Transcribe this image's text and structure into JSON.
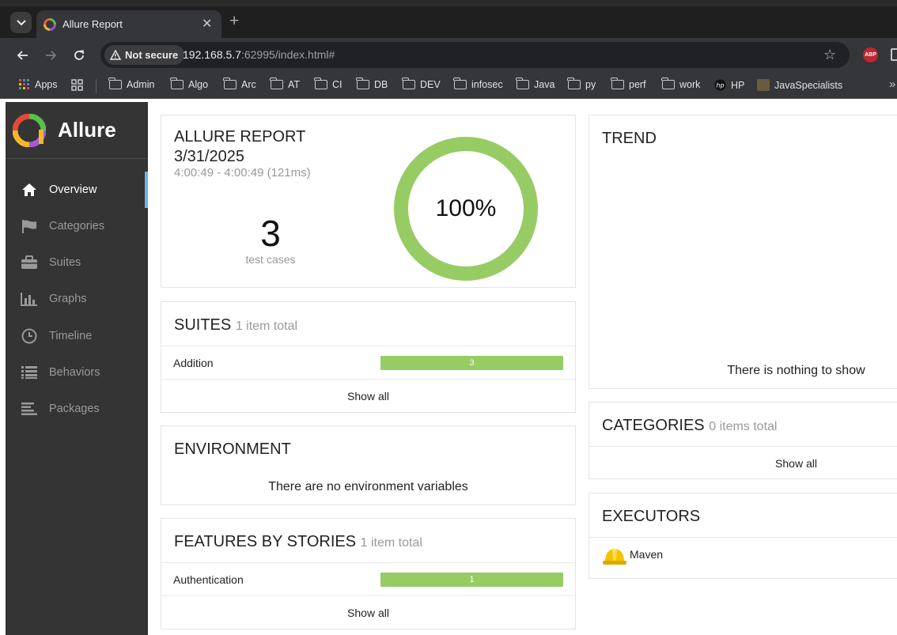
{
  "browser": {
    "tab_title": "Allure Report",
    "security_label": "Not secure",
    "url_host": "192.168.5.7",
    "url_rest": ":62995/index.html#",
    "bookmarks": [
      "Apps",
      "Admin",
      "Algo",
      "Arc",
      "AT",
      "CI",
      "DB",
      "DEV",
      "infosec",
      "Java",
      "py",
      "perf",
      "work",
      "HP",
      "JavaSpecialists"
    ],
    "abp_label": "ABP"
  },
  "sidebar": {
    "brand": "Allure",
    "items": [
      {
        "label": "Overview",
        "icon": "home-icon",
        "active": true
      },
      {
        "label": "Categories",
        "icon": "flag-icon"
      },
      {
        "label": "Suites",
        "icon": "briefcase-icon"
      },
      {
        "label": "Graphs",
        "icon": "bar-chart-icon"
      },
      {
        "label": "Timeline",
        "icon": "clock-icon"
      },
      {
        "label": "Behaviors",
        "icon": "list-icon"
      },
      {
        "label": "Packages",
        "icon": "align-left-icon"
      }
    ]
  },
  "summary": {
    "title": "ALLURE REPORT",
    "date": "3/31/2025",
    "time_range": "4:00:49 - 4:00:49 (121ms)",
    "test_count": "3",
    "test_count_label": "test cases",
    "pass_rate": "100%",
    "pass_fraction": 1.0
  },
  "suites": {
    "title": "SUITES",
    "count": "1 item total",
    "rows": [
      {
        "name": "Addition",
        "value": "3"
      }
    ],
    "show_all": "Show all"
  },
  "environment": {
    "title": "ENVIRONMENT",
    "empty": "There are no environment variables"
  },
  "features": {
    "title": "FEATURES BY STORIES",
    "count": "1 item total",
    "rows": [
      {
        "name": "Authentication",
        "value": "1"
      }
    ],
    "show_all": "Show all"
  },
  "trend": {
    "title": "TREND",
    "empty": "There is nothing to show"
  },
  "categories": {
    "title": "CATEGORIES",
    "count": "0 items total",
    "show_all": "Show all"
  },
  "executors": {
    "title": "EXECUTORS",
    "items": [
      {
        "name": "Maven",
        "icon": "hard-hat-icon"
      }
    ]
  },
  "colors": {
    "passed": "#97cc64",
    "sidebar_bg": "#343434",
    "active_accent": "#6db2e8"
  }
}
